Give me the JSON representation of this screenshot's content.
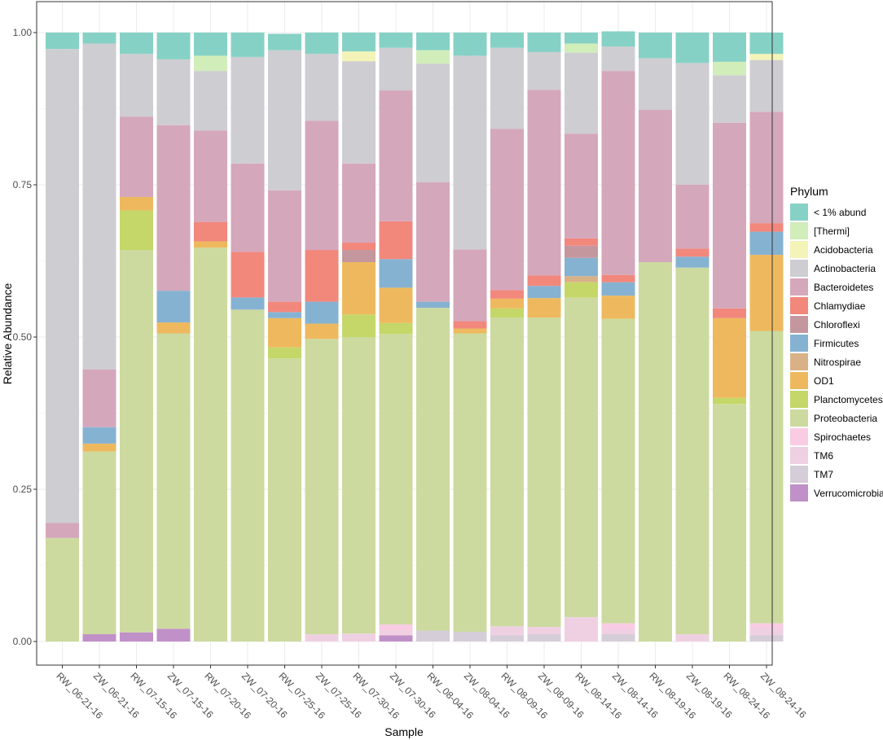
{
  "chart_data": {
    "type": "bar",
    "stacked": true,
    "xlabel": "Sample",
    "ylabel": "Relative Abundance",
    "ylim": [
      0,
      1
    ],
    "yticks": [
      "0.00",
      "0.25",
      "0.50",
      "0.75",
      "1.00"
    ],
    "grid": true,
    "legend_position": "right",
    "legend_title": "Phylum",
    "categories": [
      "RW_06-21-16",
      "ZW_06-21-16",
      "RW_07-15-16",
      "ZW_07-15-16",
      "RW_07-20-16",
      "ZW_07-20-16",
      "RW_07-25-16",
      "ZW_07-25-16",
      "RW_07-30-16",
      "ZW_07-30-16",
      "RW_08-04-16",
      "ZW_08-04-16",
      "RW_08-09-16",
      "ZW_08-09-16",
      "RW_08-14-16",
      "ZW_08-14-16",
      "RW_08-19-16",
      "ZW_08-19-16",
      "RW_08-24-16",
      "ZW_08-24-16"
    ],
    "series": [
      {
        "name": "Verrucomicrobia",
        "color": "#C090C8",
        "values": [
          0,
          0.012,
          0.015,
          0.021,
          0,
          0,
          0,
          0,
          0,
          0.01,
          0,
          0,
          0,
          0,
          0,
          0,
          0,
          0,
          0,
          0
        ]
      },
      {
        "name": "TM7",
        "color": "#D5CDD8",
        "values": [
          0,
          0,
          0,
          0,
          0,
          0,
          0,
          0,
          0,
          0,
          0.018,
          0.016,
          0.01,
          0.012,
          0,
          0.012,
          0,
          0,
          0,
          0.01
        ]
      },
      {
        "name": "TM6",
        "color": "#EFD0E2",
        "values": [
          0,
          0,
          0,
          0,
          0,
          0,
          0,
          0.012,
          0.013,
          0.008,
          0,
          0,
          0.015,
          0.012,
          0.04,
          0.008,
          0,
          0.012,
          0,
          0.012
        ]
      },
      {
        "name": "Spirochaetes",
        "color": "#F9CCE3",
        "values": [
          0,
          0,
          0,
          0,
          0,
          0,
          0,
          0,
          0,
          0.01,
          0,
          0,
          0,
          0,
          0,
          0.01,
          0,
          0,
          0,
          0.008
        ]
      },
      {
        "name": "Proteobacteria",
        "color": "#CCDA9F",
        "values": [
          0.17,
          0.3,
          0.628,
          0.485,
          0.647,
          0.545,
          0.465,
          0.485,
          0.487,
          0.477,
          0.53,
          0.49,
          0.507,
          0.508,
          0.525,
          0.5,
          0.623,
          0.602,
          0.39,
          0.48
        ]
      },
      {
        "name": "Planctomycetes",
        "color": "#C4D768",
        "values": [
          0,
          0,
          0.065,
          0,
          0,
          0,
          0.018,
          0,
          0.037,
          0.018,
          0,
          0,
          0.015,
          0,
          0.025,
          0,
          0,
          0,
          0.01,
          0
        ]
      },
      {
        "name": "OD1",
        "color": "#EEB95E",
        "values": [
          0,
          0.013,
          0.022,
          0.018,
          0.01,
          0,
          0.048,
          0.025,
          0.086,
          0.058,
          0,
          0.008,
          0.016,
          0.032,
          0,
          0.038,
          0,
          0,
          0.131,
          0.125
        ]
      },
      {
        "name": "Nitrospirae",
        "color": "#D8B187",
        "values": [
          0,
          0,
          0,
          0,
          0,
          0,
          0,
          0,
          0,
          0,
          0,
          0,
          0,
          0,
          0.01,
          0,
          0,
          0,
          0,
          0
        ]
      },
      {
        "name": "Firmicutes",
        "color": "#86B2D2",
        "values": [
          0,
          0.027,
          0,
          0.052,
          0,
          0.02,
          0.01,
          0.036,
          0,
          0.047,
          0.01,
          0,
          0,
          0.02,
          0.03,
          0.022,
          0,
          0.018,
          0,
          0.038
        ]
      },
      {
        "name": "Chloroflexi",
        "color": "#C4979E",
        "values": [
          0,
          0,
          0,
          0,
          0,
          0,
          0,
          0,
          0.02,
          0,
          0,
          0,
          0,
          0,
          0.02,
          0,
          0,
          0,
          0,
          0
        ]
      },
      {
        "name": "Chlamydiae",
        "color": "#F2877C",
        "values": [
          0,
          0,
          0,
          0,
          0.032,
          0.075,
          0.017,
          0.085,
          0.012,
          0.062,
          0,
          0.012,
          0.014,
          0.017,
          0.012,
          0.012,
          0,
          0.013,
          0.016,
          0.014
        ]
      },
      {
        "name": "Bacteroidetes",
        "color": "#D5A7BB",
        "values": [
          0.025,
          0.095,
          0.132,
          0.272,
          0.15,
          0.145,
          0.183,
          0.212,
          0.13,
          0.215,
          0.196,
          0.118,
          0.265,
          0.305,
          0.172,
          0.335,
          0.25,
          0.105,
          0.305,
          0.183
        ]
      },
      {
        "name": "Actinobacteria",
        "color": "#CECDD1",
        "values": [
          0.778,
          0.535,
          0.103,
          0.108,
          0.098,
          0.175,
          0.23,
          0.11,
          0.168,
          0.07,
          0.195,
          0.318,
          0.133,
          0.062,
          0.133,
          0.04,
          0.085,
          0.2,
          0.078,
          0.085
        ]
      },
      {
        "name": "Acidobacteria",
        "color": "#F4F4B8",
        "values": [
          0,
          0,
          0,
          0,
          0,
          0,
          0,
          0,
          0.016,
          0,
          0,
          0,
          0,
          0,
          0,
          0,
          0,
          0,
          0,
          0.01
        ]
      },
      {
        "name": "[Thermi]",
        "color": "#D1EDBA",
        "values": [
          0,
          0,
          0,
          0,
          0.025,
          0,
          0,
          0,
          0,
          0,
          0.022,
          0,
          0,
          0,
          0.015,
          0,
          0,
          0,
          0.022,
          0
        ]
      },
      {
        "name": "< 1% abund",
        "color": "#86D1C5",
        "values": [
          0.027,
          0.018,
          0.035,
          0.044,
          0.038,
          0.04,
          0.027,
          0.035,
          0.031,
          0.025,
          0.029,
          0.038,
          0.025,
          0.032,
          0.018,
          0.025,
          0.042,
          0.05,
          0.048,
          0.035
        ]
      }
    ],
    "legend_order": [
      "< 1% abund",
      "[Thermi]",
      "Acidobacteria",
      "Actinobacteria",
      "Bacteroidetes",
      "Chlamydiae",
      "Chloroflexi",
      "Firmicutes",
      "Nitrospirae",
      "OD1",
      "Planctomycetes",
      "Proteobacteria",
      "Spirochaetes",
      "TM6",
      "TM7",
      "Verrucomicrobia"
    ]
  }
}
